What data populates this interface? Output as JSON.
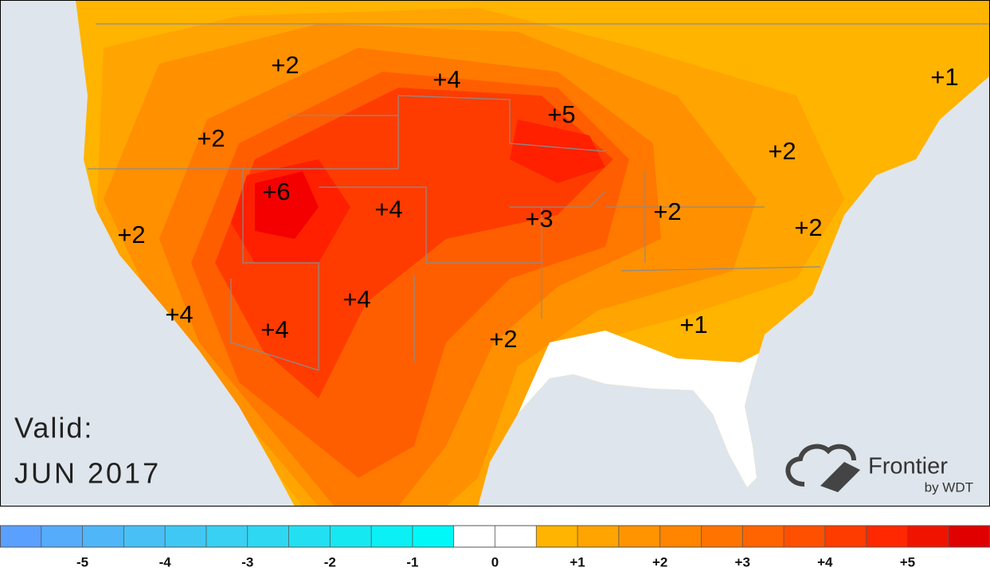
{
  "map": {
    "anomaly_labels": [
      "+2",
      "+4",
      "+5",
      "+1",
      "+2",
      "+2",
      "+6",
      "+4",
      "+3",
      "+2",
      "+2",
      "+2",
      "+4",
      "+4",
      "+4",
      "+1",
      "+2"
    ],
    "valid_label": "Valid:",
    "valid_date": "JUN 2017",
    "logo": {
      "name": "Frontier",
      "byline": "by WDT"
    }
  },
  "legend": {
    "tick_labels": [
      "-5",
      "-4",
      "-3",
      "-2",
      "-1",
      "0",
      "+1",
      "+2",
      "+3",
      "+4",
      "+5"
    ],
    "colors": [
      "#5aa0ff",
      "#55acfb",
      "#4fb6f8",
      "#48c0f6",
      "#40c8f4",
      "#38d0f3",
      "#2ed8f2",
      "#22e0f2",
      "#16e8f2",
      "#0af0f4",
      "#00f8f8",
      "#ffffff",
      "#ffffff",
      "#ffb400",
      "#ffa400",
      "#ff9400",
      "#ff8400",
      "#ff7400",
      "#ff6400",
      "#ff5000",
      "#ff3c00",
      "#ff2800",
      "#f01400",
      "#e00000"
    ]
  }
}
